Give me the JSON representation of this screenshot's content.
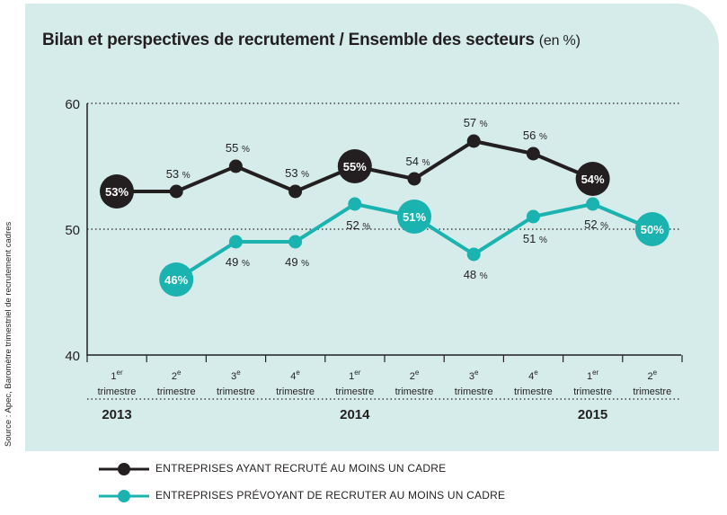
{
  "title": "Bilan et perspectives de recrutement / Ensemble des secteurs",
  "title_unit": "(en %)",
  "source": "Source : Apec, Baromètre trimestriel de recrutement cadres",
  "colors": {
    "recruited": "#231f20",
    "planned": "#1bb3b0",
    "background": "#d5ecea"
  },
  "legend": [
    {
      "label": "ENTREPRISES AYANT RECRUTÉ AU MOINS UN CADRE",
      "color": "#231f20"
    },
    {
      "label": "ENTREPRISES PRÉVOYANT DE RECRUTER AU MOINS UN CADRE",
      "color": "#1bb3b0"
    }
  ],
  "chart_data": {
    "type": "line",
    "ylim": [
      40,
      60
    ],
    "yticks": [
      40,
      50,
      60
    ],
    "gridlines": [
      50,
      60
    ],
    "categories": [
      {
        "num": "1",
        "sup": "er",
        "word": "trimestre"
      },
      {
        "num": "2",
        "sup": "e",
        "word": "trimestre"
      },
      {
        "num": "3",
        "sup": "e",
        "word": "trimestre"
      },
      {
        "num": "4",
        "sup": "e",
        "word": "trimestre"
      },
      {
        "num": "1",
        "sup": "er",
        "word": "trimestre"
      },
      {
        "num": "2",
        "sup": "e",
        "word": "trimestre"
      },
      {
        "num": "3",
        "sup": "e",
        "word": "trimestre"
      },
      {
        "num": "4",
        "sup": "e",
        "word": "trimestre"
      },
      {
        "num": "1",
        "sup": "er",
        "word": "trimestre"
      },
      {
        "num": "2",
        "sup": "e",
        "word": "trimestre"
      }
    ],
    "years": [
      {
        "label": "2013",
        "index": 0
      },
      {
        "label": "2014",
        "index": 4
      },
      {
        "label": "2015",
        "index": 8
      }
    ],
    "series": [
      {
        "name": "ENTREPRISES AYANT RECRUTÉ AU MOINS UN CADRE",
        "color": "#231f20",
        "values": [
          53,
          53,
          55,
          53,
          55,
          54,
          57,
          56,
          54,
          null
        ],
        "highlight": [
          0,
          4,
          8
        ]
      },
      {
        "name": "ENTREPRISES PRÉVOYANT DE RECRUTER AU MOINS UN CADRE",
        "color": "#1bb3b0",
        "values": [
          null,
          46,
          49,
          49,
          52,
          51,
          48,
          51,
          52,
          50
        ],
        "highlight": [
          1,
          5,
          9
        ]
      }
    ]
  }
}
